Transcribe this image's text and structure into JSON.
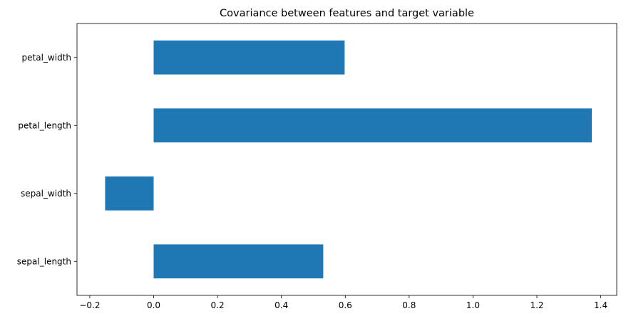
{
  "chart_data": {
    "type": "bar",
    "orientation": "horizontal",
    "title": "Covariance between features and target variable",
    "xlabel": "",
    "ylabel": "",
    "categories": [
      "sepal_length",
      "sepal_width",
      "petal_length",
      "petal_width"
    ],
    "values": [
      0.531,
      -0.152,
      1.372,
      0.598
    ],
    "xlim": [
      -0.24,
      1.45
    ],
    "xticks": [
      -0.2,
      0.0,
      0.2,
      0.4,
      0.6,
      0.8,
      1.0,
      1.2,
      1.4
    ],
    "xtick_labels": [
      "−0.2",
      "0.0",
      "0.2",
      "0.4",
      "0.6",
      "0.8",
      "1.0",
      "1.2",
      "1.4"
    ],
    "grid": false,
    "legend": "none",
    "bar_color": "#1f77b4"
  }
}
